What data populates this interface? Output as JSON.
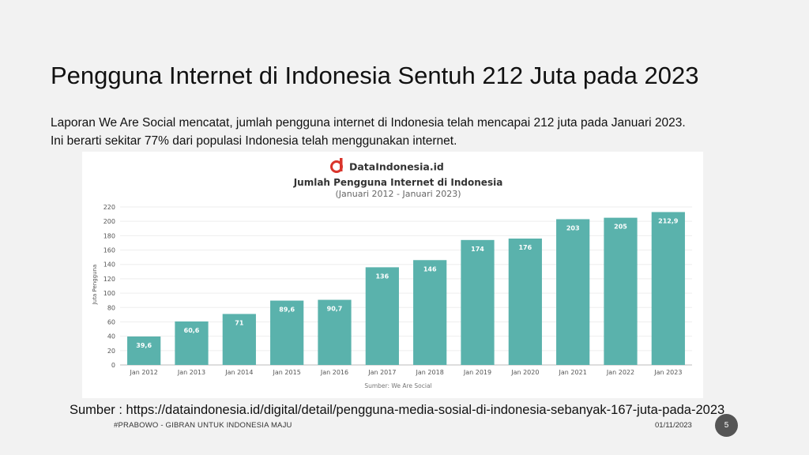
{
  "slide": {
    "title": "Pengguna Internet di Indonesia Sentuh 212 Juta pada 2023",
    "body_line1": "Laporan We Are Social mencatat, jumlah pengguna internet di Indonesia telah mencapai 212 juta pada Januari 2023.",
    "body_line2": "Ini berarti sekitar 77% dari populasi Indonesia telah menggunakan internet.",
    "source": "Sumber : https://dataindonesia.id/digital/detail/pengguna-media-sosial-di-indonesia-sebanyak-167-juta-pada-2023",
    "footer_left": "#PRABOWO - GIBRAN UNTUK INDONESIA MAJU",
    "footer_date": "01/11/2023",
    "page_number": "5"
  },
  "brand": {
    "name": "DataIndonesia.id",
    "icon": "dataindonesia-logo-icon",
    "color": "#d9342b"
  },
  "chart_data": {
    "type": "bar",
    "title": "Jumlah Pengguna Internet di Indonesia",
    "subtitle": "(Januari 2012 - Januari 2023)",
    "ylabel": "Juta Pengguna",
    "xlabel": "",
    "source_note": "Sumber: We Are Social",
    "categories": [
      "Jan 2012",
      "Jan 2013",
      "Jan 2014",
      "Jan 2015",
      "Jan 2016",
      "Jan 2017",
      "Jan 2018",
      "Jan 2019",
      "Jan 2020",
      "Jan 2021",
      "Jan 2022",
      "Jan 2023"
    ],
    "values": [
      39.6,
      60.6,
      71,
      89.6,
      90.7,
      136,
      146,
      174,
      176,
      203,
      205,
      212.9
    ],
    "value_labels": [
      "39,6",
      "60,6",
      "71",
      "89,6",
      "90,7",
      "136",
      "146",
      "174",
      "176",
      "203",
      "205",
      "212,9"
    ],
    "ylim": [
      0,
      220
    ],
    "yticks": [
      0,
      20,
      40,
      60,
      80,
      100,
      120,
      140,
      160,
      180,
      200,
      220
    ],
    "bar_color": "#5ab2ac",
    "grid": true,
    "legend": "none"
  }
}
